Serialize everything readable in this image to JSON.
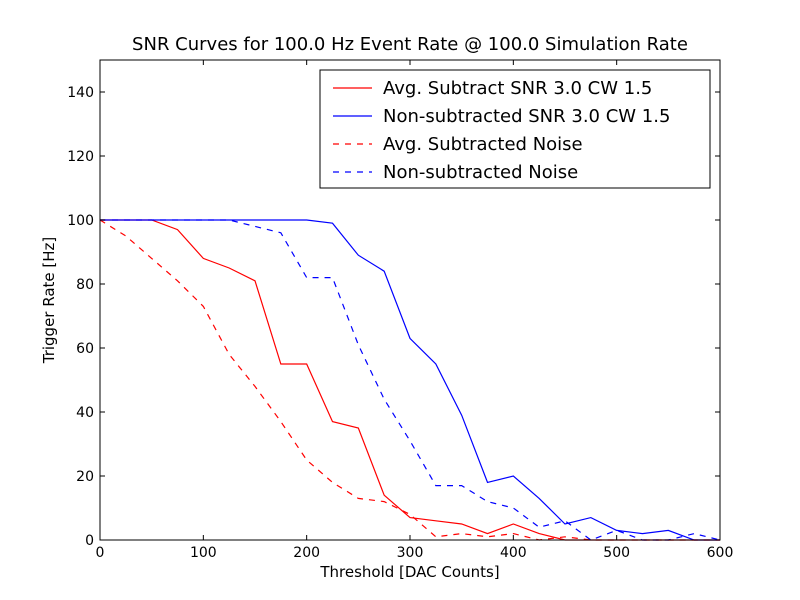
{
  "chart_data": {
    "type": "line",
    "title": "SNR Curves for 100.0 Hz Event Rate @ 100.0 Simulation Rate",
    "xlabel": "Threshold [DAC Counts]",
    "ylabel": "Trigger Rate [Hz]",
    "xlim": [
      0,
      600
    ],
    "ylim": [
      0,
      150
    ],
    "xticks": [
      0,
      100,
      200,
      300,
      400,
      500,
      600
    ],
    "yticks": [
      0,
      20,
      40,
      60,
      80,
      100,
      120,
      140
    ],
    "grid": false,
    "legend": "top-right",
    "x": [
      0,
      25,
      50,
      75,
      100,
      125,
      150,
      175,
      200,
      225,
      250,
      275,
      300,
      325,
      350,
      375,
      400,
      425,
      450,
      475,
      500,
      525,
      550,
      575,
      600
    ],
    "series": [
      {
        "name": "Avg. Subtract SNR 3.0 CW 1.5",
        "color": "#ff0000",
        "style": "solid",
        "values": [
          100,
          100,
          100,
          97,
          88,
          85,
          81,
          55,
          55,
          37,
          35,
          14,
          7,
          6,
          5,
          2,
          5,
          2,
          0,
          0,
          0,
          0,
          0,
          0,
          0
        ]
      },
      {
        "name": "Non-subtracted SNR 3.0 CW 1.5",
        "color": "#0000ff",
        "style": "solid",
        "values": [
          100,
          100,
          100,
          100,
          100,
          100,
          100,
          100,
          100,
          99,
          89,
          84,
          63,
          55,
          39,
          18,
          20,
          13,
          5,
          7,
          3,
          2,
          3,
          0,
          0
        ]
      },
      {
        "name": "Avg. Subtracted Noise",
        "color": "#ff0000",
        "style": "dashed",
        "values": [
          100,
          95,
          88,
          81,
          73,
          58,
          48,
          37,
          25,
          18,
          13,
          12,
          8,
          1,
          2,
          1,
          2,
          0,
          1,
          0,
          0,
          0,
          0,
          0,
          0
        ]
      },
      {
        "name": "Non-subtracted Noise",
        "color": "#0000ff",
        "style": "dashed",
        "values": [
          100,
          100,
          100,
          100,
          100,
          100,
          98,
          96,
          82,
          82,
          61,
          44,
          31,
          17,
          17,
          12,
          10,
          4,
          6,
          0,
          3,
          0,
          0,
          2,
          0
        ]
      }
    ]
  }
}
